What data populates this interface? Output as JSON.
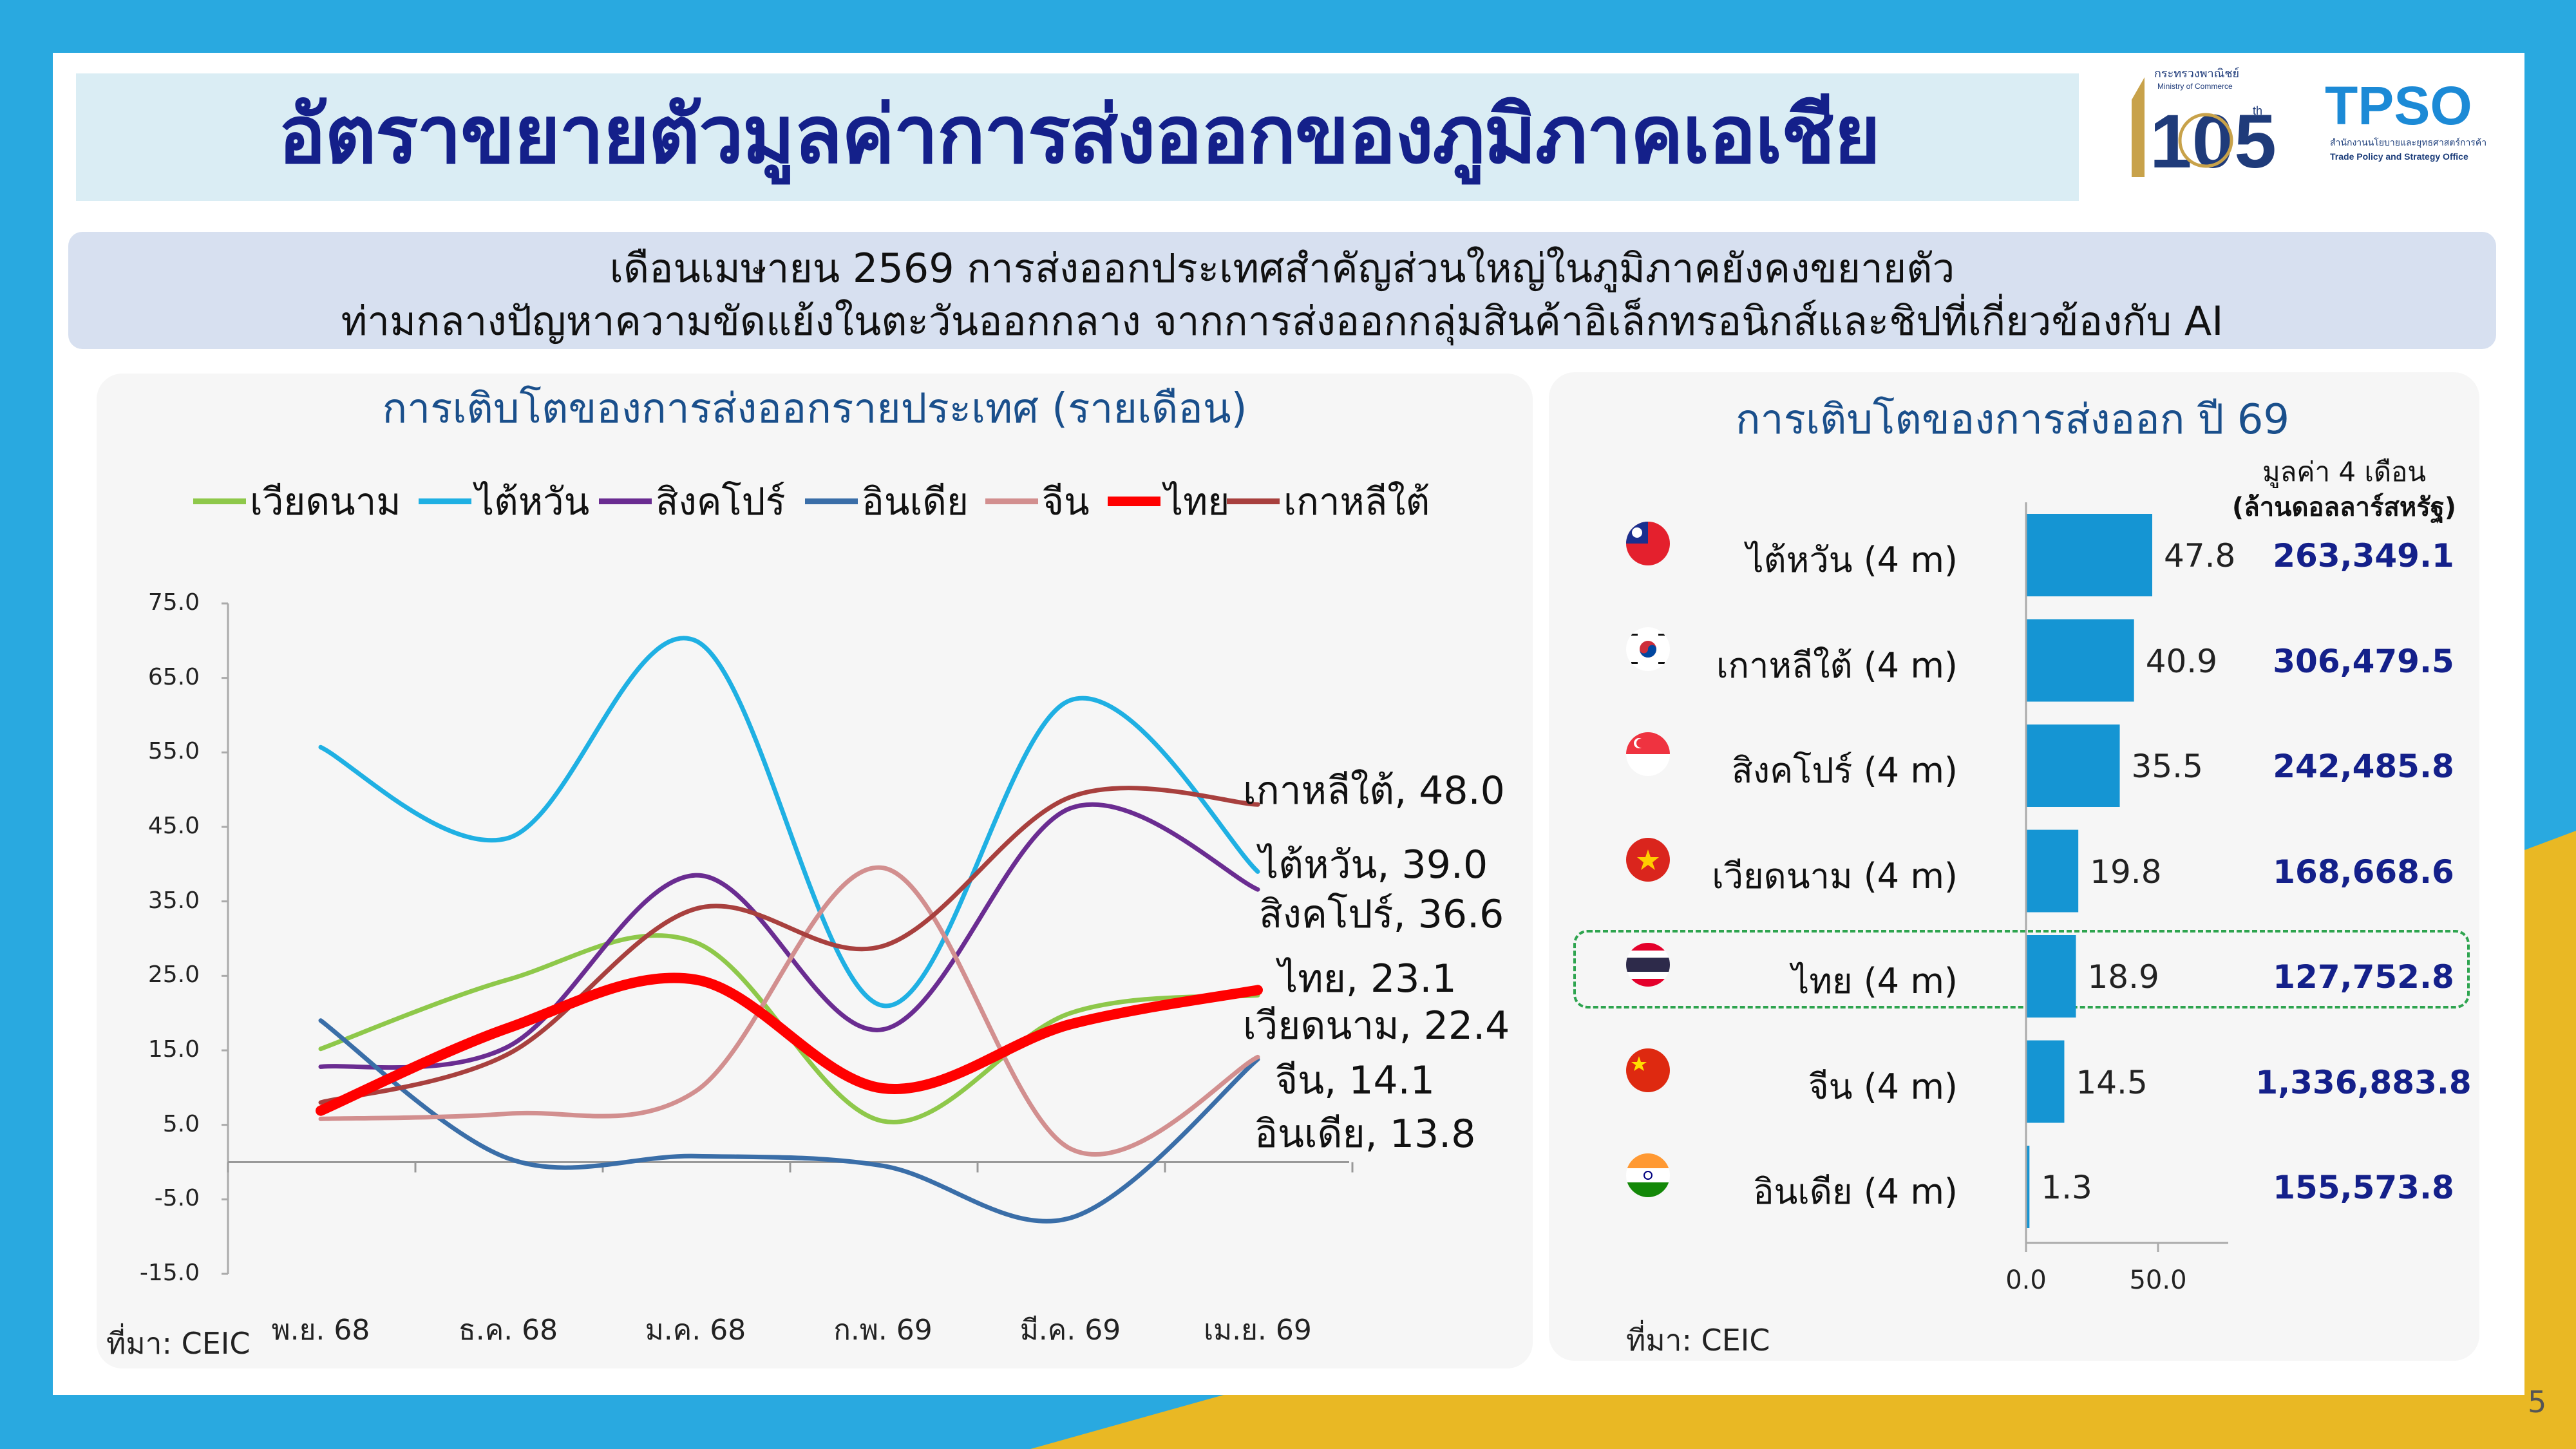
{
  "page_title": "อัตราขยายตัวมูลค่าการส่งออกของภูมิภาคเอเชีย",
  "subtitle": {
    "line1": "เดือนเมษายน 2569 การส่งออกประเทศสำคัญส่วนใหญ่ในภูมิภาคยังคงขยายตัว",
    "line2": "ท่ามกลางปัญหาความขัดแย้งในตะวันออกกลาง จากการส่งออกกลุ่มสินค้าอิเล็กทรอนิกส์และชิปที่เกี่ยวข้องกับ AI"
  },
  "logos": {
    "moc_text_th": "กระทรวงพาณิชย์",
    "moc_text_en": "Ministry of Commerce",
    "moc_number": "105",
    "moc_suffix": "th",
    "tpso_name": "TPSO",
    "tpso_text_th": "สำนักงานนโยบายและยุทธศาสตร์การค้า",
    "tpso_text_en": "Trade Policy and Strategy Office"
  },
  "page_number": "5",
  "colors": {
    "background_blue": "#29a9e0",
    "accent_yellow": "#e9b824",
    "title_navy": "#14208a",
    "bar_blue": "#1595d3"
  },
  "chart_data": [
    {
      "type": "line",
      "title": "การเติบโตของการส่งออกรายประเทศ (รายเดือน)",
      "x": [
        "พ.ย. 68",
        "ธ.ค. 68",
        "ม.ค. 68",
        "ก.พ. 69",
        "มี.ค. 69",
        "เม.ย. 69"
      ],
      "y_ticks": [
        "75.0",
        "65.0",
        "55.0",
        "45.0",
        "35.0",
        "25.0",
        "15.0",
        "5.0",
        "-5.0",
        "-15.0"
      ],
      "ylim": [
        -15,
        75
      ],
      "legend_position": "top",
      "series": [
        {
          "name": "เวียดนาม",
          "color": "#8ec84a",
          "width": 7,
          "values": [
            15.2,
            24.5,
            29.5,
            5.5,
            20.0,
            22.4
          ],
          "end_label": "เวียดนาม, 22.4"
        },
        {
          "name": "ไต้หวัน",
          "color": "#1fb0e3",
          "width": 7,
          "values": [
            55.7,
            43.5,
            70.0,
            21.0,
            62.0,
            39.0
          ],
          "end_label": "ไต้หวัน, 39.0"
        },
        {
          "name": "สิงคโปร์",
          "color": "#6a2c91",
          "width": 7,
          "values": [
            12.8,
            15.5,
            38.5,
            17.8,
            47.5,
            36.6
          ],
          "end_label": "สิงคโปร์, 36.6"
        },
        {
          "name": "อินเดีย",
          "color": "#3a6ea8",
          "width": 7,
          "values": [
            19.0,
            0.5,
            0.8,
            -0.5,
            -7.5,
            13.8
          ],
          "end_label": "อินเดีย, 13.8"
        },
        {
          "name": "จีน",
          "color": "#d28f8f",
          "width": 7,
          "values": [
            5.8,
            6.5,
            9.5,
            39.5,
            1.8,
            14.1
          ],
          "end_label": "จีน, 14.1"
        },
        {
          "name": "ไทย",
          "color": "#ff0000",
          "width": 16,
          "values": [
            6.9,
            18.0,
            24.5,
            9.9,
            18.5,
            23.1
          ],
          "end_label": "ไทย, 23.1"
        },
        {
          "name": "เกาหลีใต้",
          "color": "#a8403e",
          "width": 7,
          "values": [
            8.0,
            14.5,
            34.0,
            29.0,
            49.0,
            48.0
          ],
          "end_label": "เกาหลีใต้, 48.0"
        }
      ],
      "source": "ที่มา: CEIC"
    },
    {
      "type": "bar",
      "orientation": "horizontal",
      "title": "การเติบโตของการส่งออก ปี 69",
      "amount_header": "มูลค่า 4 เดือน",
      "amount_unit": "(ล้านดอลลาร์สหรัฐ)",
      "categories": [
        "ไต้หวัน (4 m)",
        "เกาหลีใต้ (4 m)",
        "สิงคโปร์ (4 m)",
        "เวียดนาม (4 m)",
        "ไทย (4 m)",
        "จีน (4 m)",
        "อินเดีย (4 m)"
      ],
      "values": [
        47.8,
        40.9,
        35.5,
        19.8,
        18.9,
        14.5,
        1.3
      ],
      "value_labels": [
        "47.8",
        "40.9",
        "35.5",
        "19.8",
        "18.9",
        "14.5",
        "1.3"
      ],
      "amounts": [
        "263,349.1",
        "306,479.5",
        "242,485.8",
        "168,668.6",
        "127,752.8",
        "1,336,883.8",
        "155,573.8"
      ],
      "flags": [
        "taiwan-flag-icon",
        "south-korea-flag-icon",
        "singapore-flag-icon",
        "vietnam-flag-icon",
        "thailand-flag-icon",
        "china-flag-icon",
        "india-flag-icon"
      ],
      "highlighted": "ไทย (4 m)",
      "x_ticks": [
        "0.0",
        "50.0"
      ],
      "xlim": [
        0,
        50
      ],
      "source": "ที่มา: CEIC"
    }
  ]
}
